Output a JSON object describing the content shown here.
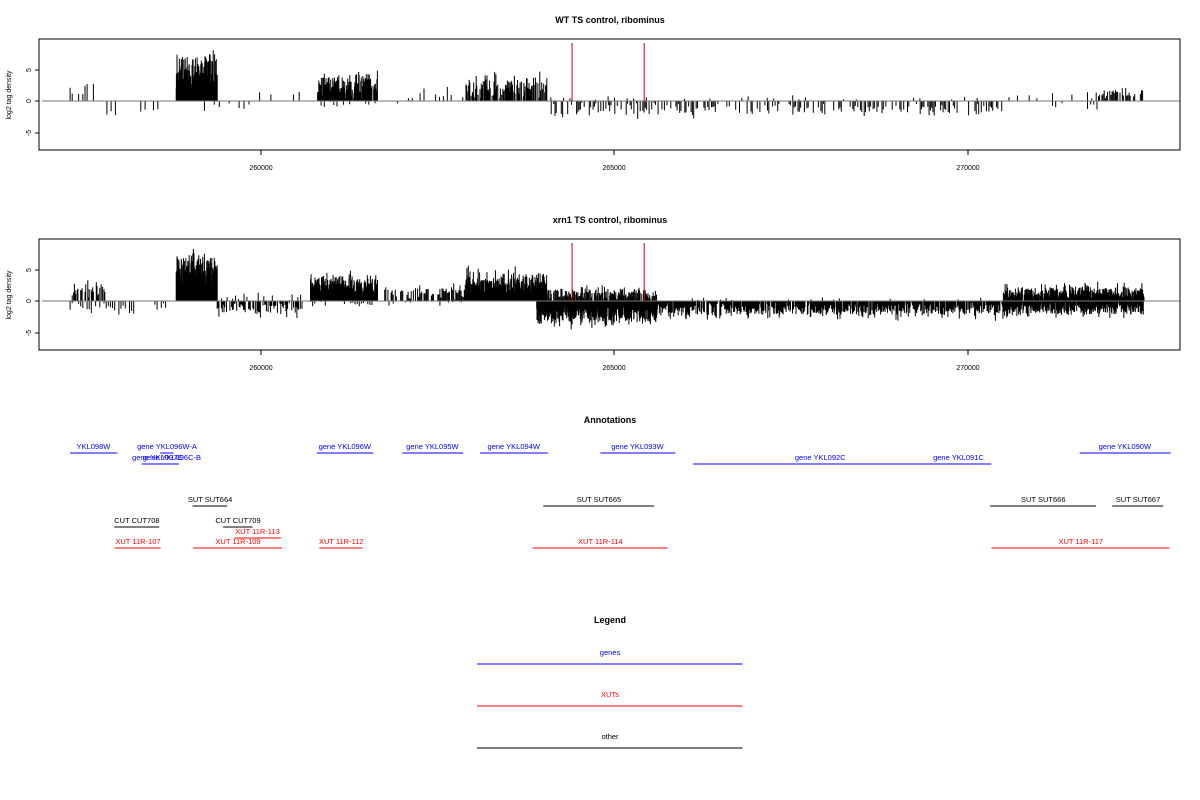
{
  "colors": {
    "genes": "#0000ff",
    "XUTs": "#ff0000",
    "other": "#000000",
    "marker": "#cc0000"
  },
  "panels": [
    {
      "title": "WT TS control, ribominus",
      "ylabel": "log2 tag density",
      "yticks": [
        "-5",
        "0",
        "5"
      ],
      "xticks": [
        "260000",
        "265000",
        "270000"
      ]
    },
    {
      "title": "xrn1 TS control, ribominus",
      "ylabel": "log2 tag density",
      "yticks": [
        "-5",
        "0",
        "5"
      ],
      "xticks": [
        "260000",
        "265000",
        "270000"
      ]
    }
  ],
  "annotations": {
    "title": "Annotations",
    "features": [
      {
        "label": "YKL098W",
        "strand": "+",
        "start": 257300,
        "end": 257960,
        "cls": "genes",
        "row": 0
      },
      {
        "label": "gene YKL096W-A",
        "strand": "-",
        "start": 258580,
        "end": 258760,
        "cls": "genes",
        "row": 0
      },
      {
        "label": "gene YKL097C",
        "strand": "-",
        "start": 258320,
        "end": 258750,
        "cls": "genes",
        "row": 1
      },
      {
        "label": "gene YKL096C-B",
        "strand": "-",
        "start": 258640,
        "end": 258840,
        "cls": "genes",
        "row": 1
      },
      {
        "label": "gene YKL096W",
        "strand": "+",
        "start": 260790,
        "end": 261580,
        "cls": "genes",
        "row": 0
      },
      {
        "label": "gene YKL095W",
        "strand": "+",
        "start": 262000,
        "end": 262850,
        "cls": "genes",
        "row": 0
      },
      {
        "label": "gene YKL094W",
        "strand": "+",
        "start": 263100,
        "end": 264050,
        "cls": "genes",
        "row": 0
      },
      {
        "label": "gene YKL093W",
        "strand": "+",
        "start": 264800,
        "end": 265850,
        "cls": "genes",
        "row": 0
      },
      {
        "label": "gene YKL092C",
        "strand": "-",
        "start": 266120,
        "end": 269700,
        "cls": "genes",
        "row": 1
      },
      {
        "label": "gene YKL091C",
        "strand": "-",
        "start": 269400,
        "end": 270330,
        "cls": "genes",
        "row": 1
      },
      {
        "label": "gene YKL090W",
        "strand": "+",
        "start": 271580,
        "end": 272910,
        "cls": "genes",
        "row": 0
      },
      {
        "label": "SUT SUT664",
        "strand": "-",
        "start": 259040,
        "end": 259520,
        "cls": "other",
        "row": 2
      },
      {
        "label": "SUT SUT665",
        "strand": "-",
        "start": 264000,
        "end": 265560,
        "cls": "other",
        "row": 2
      },
      {
        "label": "SUT SUT666",
        "strand": "-",
        "start": 270320,
        "end": 271810,
        "cls": "other",
        "row": 2
      },
      {
        "label": "SUT SUT667",
        "strand": "-",
        "start": 272050,
        "end": 272760,
        "cls": "other",
        "row": 2
      },
      {
        "label": "CUT CUT708",
        "strand": "-",
        "start": 257930,
        "end": 258560,
        "cls": "other",
        "row": 3
      },
      {
        "label": "CUT CUT709",
        "strand": "-",
        "start": 259470,
        "end": 259880,
        "cls": "other",
        "row": 3
      },
      {
        "label": "XUT 11R-113",
        "strand": "+",
        "start": 259620,
        "end": 260280,
        "cls": "XUTs",
        "row": 4
      },
      {
        "label": "XUT 11R-107",
        "strand": "-",
        "start": 257940,
        "end": 258580,
        "cls": "XUTs",
        "row": 5
      },
      {
        "label": "XUT 11R-109",
        "strand": "-",
        "start": 259050,
        "end": 260300,
        "cls": "XUTs",
        "row": 5
      },
      {
        "label": "XUT 11R-112",
        "strand": "-",
        "start": 260830,
        "end": 261440,
        "cls": "XUTs",
        "row": 5
      },
      {
        "label": "XUT 11R-114",
        "strand": "-",
        "start": 263850,
        "end": 265750,
        "cls": "XUTs",
        "row": 5
      },
      {
        "label": "XUT 11R-117",
        "strand": "-",
        "start": 270340,
        "end": 272850,
        "cls": "XUTs",
        "row": 5
      }
    ]
  },
  "legend": {
    "title": "Legend",
    "items": [
      {
        "label": "genes",
        "cls": "genes"
      },
      {
        "label": "XUTs",
        "cls": "XUTs"
      },
      {
        "label": "other",
        "cls": "other"
      }
    ]
  },
  "chart_data": [
    {
      "type": "bar",
      "title": "WT TS control, ribominus",
      "xlabel": "",
      "ylabel": "log2 tag density",
      "xlim": [
        257100,
        273300
      ],
      "ylim": [
        -7.5,
        9.5
      ],
      "grid": false,
      "markers_x": [
        264400,
        265420
      ],
      "segments": [
        {
          "start": 257300,
          "end": 257640,
          "step": 30,
          "a": 2.0,
          "n": 1.5,
          "floor": 0.4,
          "p": 0.35,
          "sign": "pos"
        },
        {
          "start": 257700,
          "end": 258600,
          "step": 60,
          "a": 2.0,
          "n": 0.3,
          "floor": 0.2,
          "p": 0.35,
          "sign": "neg"
        },
        {
          "start": 258800,
          "end": 259380,
          "step": 4,
          "a": 6.0,
          "n": 2.6,
          "floor": 0.5,
          "p": 1.0,
          "sign": "pos"
        },
        {
          "start": 259200,
          "end": 259900,
          "step": 70,
          "a": 1.6,
          "n": 1.0,
          "floor": 0.2,
          "p": 0.5,
          "sign": "neg"
        },
        {
          "start": 259900,
          "end": 260700,
          "step": 80,
          "a": 1.5,
          "n": 1.0,
          "floor": 0.2,
          "p": 0.3,
          "sign": "pos"
        },
        {
          "start": 260800,
          "end": 261650,
          "step": 6,
          "a": 3.5,
          "n": 1.3,
          "floor": 0.3,
          "p": 0.92,
          "sign": "pos"
        },
        {
          "start": 260850,
          "end": 261650,
          "step": 45,
          "a": 0.9,
          "n": 0.3,
          "floor": 0.1,
          "p": 0.5,
          "sign": "neg"
        },
        {
          "start": 261700,
          "end": 262900,
          "step": 55,
          "a": 1.6,
          "n": 1.3,
          "floor": 0.2,
          "p": 0.45,
          "sign": "pos"
        },
        {
          "start": 261750,
          "end": 262900,
          "step": 90,
          "a": 0.8,
          "n": 0.3,
          "floor": 0.1,
          "p": 0.3,
          "sign": "neg"
        },
        {
          "start": 262900,
          "end": 264050,
          "step": 9,
          "a": 3.0,
          "n": 2.0,
          "floor": 0.3,
          "p": 0.75,
          "sign": "pos"
        },
        {
          "start": 264050,
          "end": 270500,
          "step": 18,
          "a": 1.6,
          "n": 1.5,
          "floor": 0.2,
          "p": 0.5,
          "sign": "neg"
        },
        {
          "start": 264100,
          "end": 270700,
          "step": 90,
          "a": 0.5,
          "n": 0.4,
          "floor": 0.1,
          "p": 0.3,
          "sign": "pos"
        },
        {
          "start": 270700,
          "end": 271800,
          "step": 55,
          "a": 0.8,
          "n": 1.5,
          "floor": 0.1,
          "p": 0.35,
          "sign": "pos"
        },
        {
          "start": 270700,
          "end": 271900,
          "step": 45,
          "a": 1.2,
          "n": 0.5,
          "floor": 0.2,
          "p": 0.35,
          "sign": "neg"
        },
        {
          "start": 271750,
          "end": 272500,
          "step": 16,
          "a": 1.4,
          "n": 1.4,
          "floor": 0.2,
          "p": 0.6,
          "sign": "pos"
        }
      ]
    },
    {
      "type": "bar",
      "title": "xrn1 TS control, ribominus",
      "xlabel": "",
      "ylabel": "log2 tag density",
      "xlim": [
        257100,
        273300
      ],
      "ylim": [
        -7.5,
        9.5
      ],
      "grid": false,
      "markers_x": [
        264400,
        265420
      ],
      "segments": [
        {
          "start": 257300,
          "end": 257800,
          "step": 10,
          "a": 1.8,
          "n": 1.5,
          "floor": 0.3,
          "p": 0.6,
          "sign": "pos"
        },
        {
          "start": 257300,
          "end": 258700,
          "step": 30,
          "a": 1.3,
          "n": 1.0,
          "floor": 0.2,
          "p": 0.5,
          "sign": "neg"
        },
        {
          "start": 258800,
          "end": 259380,
          "step": 4,
          "a": 6.0,
          "n": 2.6,
          "floor": 0.5,
          "p": 1.0,
          "sign": "pos"
        },
        {
          "start": 259380,
          "end": 260600,
          "step": 12,
          "a": 1.5,
          "n": 1.5,
          "floor": 0.2,
          "p": 0.6,
          "sign": "neg"
        },
        {
          "start": 259400,
          "end": 260600,
          "step": 40,
          "a": 0.8,
          "n": 0.7,
          "floor": 0.1,
          "p": 0.45,
          "sign": "pos"
        },
        {
          "start": 260700,
          "end": 261650,
          "step": 4,
          "a": 3.0,
          "n": 2.0,
          "floor": 0.3,
          "p": 0.95,
          "sign": "pos"
        },
        {
          "start": 260700,
          "end": 261650,
          "step": 30,
          "a": 0.6,
          "n": 0.3,
          "floor": 0.1,
          "p": 0.5,
          "sign": "neg"
        },
        {
          "start": 261750,
          "end": 262900,
          "step": 15,
          "a": 1.7,
          "n": 1.5,
          "floor": 0.2,
          "p": 0.7,
          "sign": "pos"
        },
        {
          "start": 261750,
          "end": 262900,
          "step": 60,
          "a": 0.6,
          "n": 0.3,
          "floor": 0.1,
          "p": 0.35,
          "sign": "neg"
        },
        {
          "start": 262900,
          "end": 264050,
          "step": 4,
          "a": 3.2,
          "n": 2.5,
          "floor": 0.3,
          "p": 0.95,
          "sign": "pos"
        },
        {
          "start": 263900,
          "end": 265600,
          "step": 4,
          "a": 2.6,
          "n": 2.0,
          "floor": 0.3,
          "p": 0.95,
          "sign": "neg"
        },
        {
          "start": 264050,
          "end": 265600,
          "step": 8,
          "a": 1.5,
          "n": 1.2,
          "floor": 0.2,
          "p": 0.8,
          "sign": "pos"
        },
        {
          "start": 265600,
          "end": 270600,
          "step": 7,
          "a": 1.6,
          "n": 1.8,
          "floor": 0.2,
          "p": 0.75,
          "sign": "neg"
        },
        {
          "start": 265700,
          "end": 270700,
          "step": 80,
          "a": 0.4,
          "n": 0.3,
          "floor": 0.1,
          "p": 0.2,
          "sign": "pos"
        },
        {
          "start": 270500,
          "end": 272500,
          "step": 5,
          "a": 1.5,
          "n": 1.6,
          "floor": 0.2,
          "p": 0.8,
          "sign": "pos"
        },
        {
          "start": 270500,
          "end": 272500,
          "step": 6,
          "a": 1.6,
          "n": 1.4,
          "floor": 0.2,
          "p": 0.8,
          "sign": "neg"
        }
      ]
    }
  ]
}
